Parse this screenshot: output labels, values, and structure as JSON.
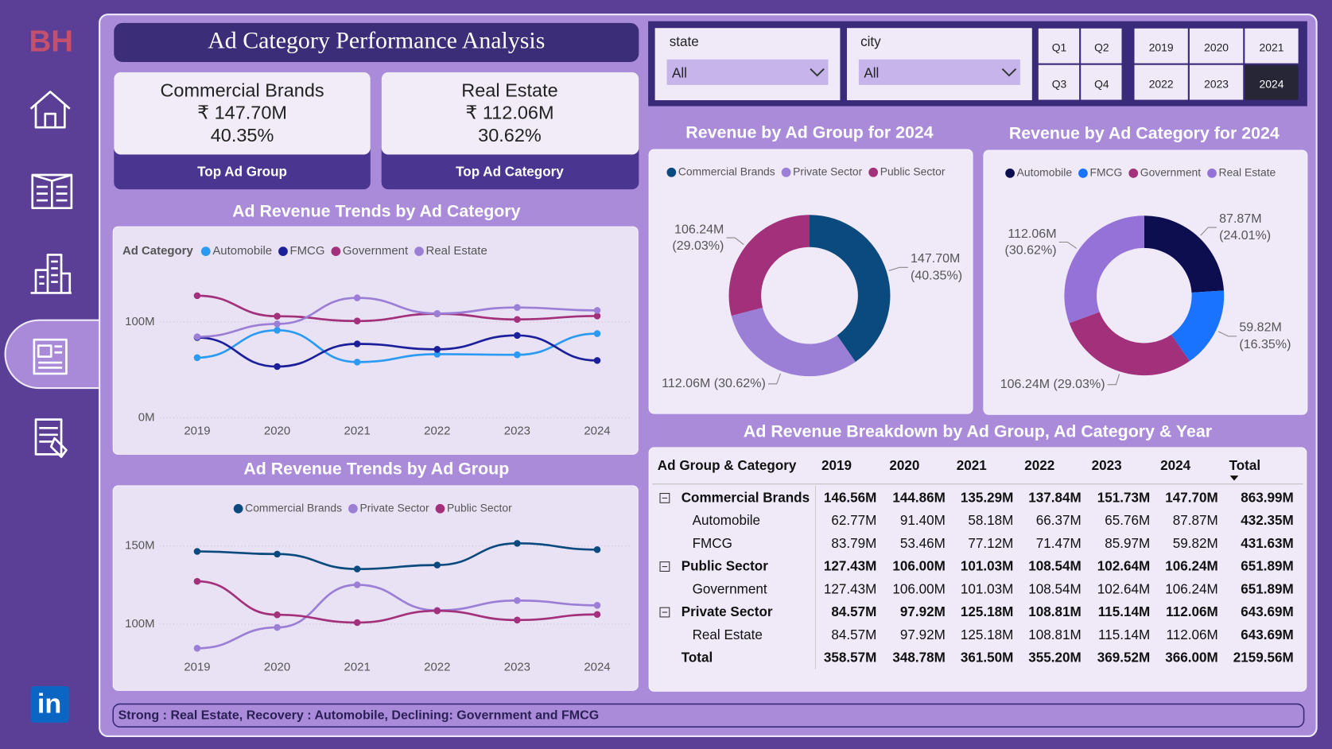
{
  "sidebar": {
    "logo": "BH",
    "linkedin": "in"
  },
  "header": {
    "title": "Ad Category Performance Analysis"
  },
  "kpis": [
    {
      "name": "Commercial Brands",
      "value": "₹ 147.70M",
      "share": "40.35%",
      "caption": "Top Ad Group"
    },
    {
      "name": "Real Estate",
      "value": "₹ 112.06M",
      "share": "30.62%",
      "caption": "Top Ad Category"
    }
  ],
  "slicers": {
    "state": {
      "label": "state",
      "value": "All"
    },
    "city": {
      "label": "city",
      "value": "All"
    },
    "quarters": [
      "Q1",
      "Q2",
      "Q3",
      "Q4"
    ],
    "years": [
      "2019",
      "2020",
      "2021",
      "2022",
      "2023",
      "2024"
    ],
    "selected_year": "2024"
  },
  "chart_data": [
    {
      "type": "line",
      "title": "Ad Revenue Trends by Ad Category",
      "legend_title": "Ad Category",
      "legend": "top-left",
      "categories": [
        "2019",
        "2020",
        "2021",
        "2022",
        "2023",
        "2024"
      ],
      "series": [
        {
          "name": "Automobile",
          "color": "#2b9af3",
          "values": [
            62.77,
            91.4,
            58.18,
            66.37,
            65.76,
            87.87
          ]
        },
        {
          "name": "FMCG",
          "color": "#1c1f9a",
          "values": [
            83.79,
            53.46,
            77.12,
            71.47,
            85.97,
            59.82
          ]
        },
        {
          "name": "Government",
          "color": "#a3307a",
          "values": [
            127.43,
            106.0,
            101.03,
            108.54,
            102.64,
            106.24
          ]
        },
        {
          "name": "Real Estate",
          "color": "#9b7fd6",
          "values": [
            84.57,
            97.92,
            125.18,
            108.81,
            115.14,
            112.06
          ]
        }
      ],
      "ylim": [
        0,
        140
      ],
      "yticks": [
        {
          "value": 0,
          "label": "0M"
        },
        {
          "value": 100,
          "label": "100M"
        }
      ],
      "grid": true
    },
    {
      "type": "line",
      "title": "Ad Revenue Trends by Ad Group",
      "legend": "top",
      "categories": [
        "2019",
        "2020",
        "2021",
        "2022",
        "2023",
        "2024"
      ],
      "series": [
        {
          "name": "Commercial Brands",
          "color": "#0b4a7e",
          "values": [
            146.56,
            144.86,
            135.29,
            137.84,
            151.73,
            147.7
          ]
        },
        {
          "name": "Private Sector",
          "color": "#9b7fd6",
          "values": [
            84.57,
            97.92,
            125.18,
            108.81,
            115.14,
            112.06
          ]
        },
        {
          "name": "Public Sector",
          "color": "#a3307a",
          "values": [
            127.43,
            106.0,
            101.03,
            108.54,
            102.64,
            106.24
          ]
        }
      ],
      "ylim": [
        80,
        160
      ],
      "yticks": [
        {
          "value": 100,
          "label": "100M"
        },
        {
          "value": 150,
          "label": "150M"
        }
      ],
      "grid": true
    },
    {
      "type": "donut",
      "title": "Revenue by Ad Group for 2024",
      "legend": "top",
      "categories": [
        "Commercial Brands",
        "Private Sector",
        "Public Sector"
      ],
      "values": [
        147.7,
        112.06,
        106.24
      ],
      "value_labels": [
        "147.70M (40.35%)",
        "112.06M (30.62%)",
        "106.24M (29.03%)"
      ],
      "colors": [
        "#0b4a7e",
        "#9b7fd6",
        "#a3307a"
      ]
    },
    {
      "type": "donut",
      "title": "Revenue by Ad Category for 2024",
      "legend": "top",
      "categories": [
        "Automobile",
        "FMCG",
        "Government",
        "Real Estate"
      ],
      "values": [
        87.87,
        59.82,
        106.24,
        112.06
      ],
      "value_labels": [
        "87.87M (24.01%)",
        "59.82M (16.35%)",
        "106.24M (29.03%)",
        "112.06M (30.62%)"
      ],
      "colors": [
        "#0d0e4f",
        "#1a73ff",
        "#a3307a",
        "#9472d8"
      ]
    }
  ],
  "table": {
    "title": "Ad Revenue Breakdown by Ad Group, Ad Category & Year",
    "columns": [
      "Ad Group & Category",
      "2019",
      "2020",
      "2021",
      "2022",
      "2023",
      "2024",
      "Total"
    ],
    "groups": [
      {
        "name": "Commercial Brands",
        "values": [
          "146.56M",
          "144.86M",
          "135.29M",
          "137.84M",
          "151.73M",
          "147.70M",
          "863.99M"
        ],
        "children": [
          {
            "name": "Automobile",
            "values": [
              "62.77M",
              "91.40M",
              "58.18M",
              "66.37M",
              "65.76M",
              "87.87M",
              "432.35M"
            ]
          },
          {
            "name": "FMCG",
            "values": [
              "83.79M",
              "53.46M",
              "77.12M",
              "71.47M",
              "85.97M",
              "59.82M",
              "431.63M"
            ]
          }
        ]
      },
      {
        "name": "Public Sector",
        "values": [
          "127.43M",
          "106.00M",
          "101.03M",
          "108.54M",
          "102.64M",
          "106.24M",
          "651.89M"
        ],
        "children": [
          {
            "name": "Government",
            "values": [
              "127.43M",
              "106.00M",
              "101.03M",
              "108.54M",
              "102.64M",
              "106.24M",
              "651.89M"
            ]
          }
        ]
      },
      {
        "name": "Private Sector",
        "values": [
          "84.57M",
          "97.92M",
          "125.18M",
          "108.81M",
          "115.14M",
          "112.06M",
          "643.69M"
        ],
        "children": [
          {
            "name": "Real Estate",
            "values": [
              "84.57M",
              "97.92M",
              "125.18M",
              "108.81M",
              "115.14M",
              "112.06M",
              "643.69M"
            ]
          }
        ]
      }
    ],
    "total": {
      "label": "Total",
      "values": [
        "358.57M",
        "348.78M",
        "361.50M",
        "355.20M",
        "369.52M",
        "366.00M",
        "2159.56M"
      ]
    }
  },
  "footer": {
    "text": "Strong : Real Estate, Recovery : Automobile, Declining: Government and FMCG"
  }
}
